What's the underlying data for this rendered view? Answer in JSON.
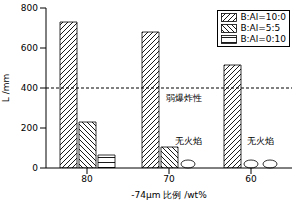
{
  "chart_data": {
    "type": "bar",
    "categories": [
      "80",
      "70",
      "60"
    ],
    "x_label": "-74μm 比例 /wt%",
    "y_label": "L /mm",
    "ylim": [
      0,
      800
    ],
    "yticks": [
      0,
      200,
      400,
      600,
      800
    ],
    "legend": "upper right",
    "series": [
      {
        "name": "B:Al=10:0",
        "color": "#000000",
        "values": [
          730,
          680,
          515
        ]
      },
      {
        "name": "B:Al=5:5",
        "color": "#000000",
        "values": [
          230,
          105,
          0
        ]
      },
      {
        "name": "B:Al=0:10",
        "color": "#000000",
        "values": [
          65,
          0,
          0
        ]
      }
    ],
    "annotations": [
      {
        "text": "弱爆炸性",
        "y": 400
      },
      {
        "text": "无火焰",
        "category": "70",
        "series": [
          "B:Al=0:10"
        ]
      },
      {
        "text": "无火焰",
        "category": "60",
        "series": [
          "B:Al=5:5",
          "B:Al=0:10"
        ]
      }
    ]
  }
}
